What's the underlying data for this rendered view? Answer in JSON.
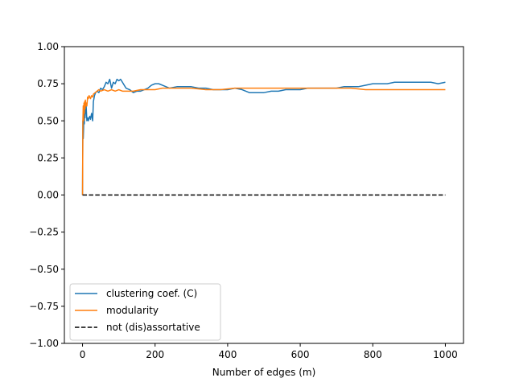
{
  "chart_data": {
    "type": "line",
    "title": "",
    "xlabel": "Number of edges (m)",
    "ylabel": "",
    "xlim": [
      -50,
      1050
    ],
    "ylim": [
      -1.0,
      1.0
    ],
    "xticks": [
      0,
      200,
      400,
      600,
      800,
      1000
    ],
    "xtick_labels": [
      "0",
      "200",
      "400",
      "600",
      "800",
      "1000"
    ],
    "yticks": [
      -1.0,
      -0.75,
      -0.5,
      -0.25,
      0.0,
      0.25,
      0.5,
      0.75,
      1.0
    ],
    "ytick_labels": [
      "−1.00",
      "−0.75",
      "−0.50",
      "−0.25",
      "0.00",
      "0.25",
      "0.50",
      "0.75",
      "1.00"
    ],
    "grid": false,
    "legend_position": "lower-left",
    "series": [
      {
        "name": "clustering coef. (C)",
        "color": "#1f77b4",
        "style": "solid",
        "x": [
          0,
          1,
          2,
          3,
          4,
          5,
          6,
          7,
          8,
          9,
          10,
          12,
          14,
          16,
          18,
          20,
          22,
          25,
          28,
          30,
          33,
          36,
          40,
          45,
          50,
          55,
          60,
          65,
          70,
          75,
          80,
          85,
          90,
          95,
          100,
          105,
          110,
          115,
          120,
          130,
          140,
          150,
          160,
          170,
          180,
          190,
          200,
          210,
          220,
          230,
          240,
          260,
          280,
          300,
          320,
          340,
          360,
          380,
          400,
          420,
          440,
          460,
          480,
          500,
          520,
          540,
          560,
          580,
          600,
          620,
          640,
          660,
          680,
          700,
          720,
          740,
          760,
          780,
          800,
          820,
          840,
          860,
          880,
          900,
          920,
          940,
          960,
          980,
          1000
        ],
        "y": [
          0.0,
          0.5,
          0.38,
          0.45,
          0.55,
          0.48,
          0.62,
          0.52,
          0.58,
          0.55,
          0.6,
          0.5,
          0.52,
          0.5,
          0.52,
          0.53,
          0.51,
          0.55,
          0.5,
          0.63,
          0.67,
          0.69,
          0.7,
          0.69,
          0.72,
          0.71,
          0.73,
          0.76,
          0.75,
          0.78,
          0.72,
          0.76,
          0.75,
          0.78,
          0.77,
          0.78,
          0.76,
          0.74,
          0.72,
          0.71,
          0.69,
          0.7,
          0.7,
          0.71,
          0.72,
          0.74,
          0.75,
          0.75,
          0.74,
          0.73,
          0.72,
          0.73,
          0.73,
          0.73,
          0.72,
          0.72,
          0.71,
          0.71,
          0.71,
          0.72,
          0.71,
          0.69,
          0.69,
          0.69,
          0.7,
          0.7,
          0.71,
          0.71,
          0.71,
          0.72,
          0.72,
          0.72,
          0.72,
          0.72,
          0.73,
          0.73,
          0.73,
          0.74,
          0.75,
          0.75,
          0.75,
          0.76,
          0.76,
          0.76,
          0.76,
          0.76,
          0.76,
          0.75,
          0.76
        ]
      },
      {
        "name": "modularity",
        "color": "#ff7f0e",
        "style": "solid",
        "x": [
          0,
          1,
          2,
          3,
          4,
          5,
          6,
          7,
          8,
          9,
          10,
          12,
          14,
          16,
          18,
          20,
          22,
          25,
          28,
          30,
          35,
          40,
          45,
          50,
          60,
          70,
          80,
          90,
          100,
          110,
          120,
          140,
          160,
          180,
          200,
          220,
          240,
          260,
          280,
          300,
          340,
          380,
          420,
          460,
          500,
          540,
          580,
          620,
          660,
          700,
          740,
          780,
          820,
          860,
          900,
          940,
          980,
          1000
        ],
        "y": [
          0.0,
          0.5,
          0.6,
          0.5,
          0.62,
          0.55,
          0.63,
          0.58,
          0.64,
          0.6,
          0.62,
          0.6,
          0.66,
          0.65,
          0.67,
          0.66,
          0.65,
          0.67,
          0.66,
          0.68,
          0.69,
          0.7,
          0.71,
          0.7,
          0.71,
          0.7,
          0.71,
          0.7,
          0.71,
          0.7,
          0.7,
          0.7,
          0.71,
          0.71,
          0.71,
          0.72,
          0.72,
          0.72,
          0.72,
          0.72,
          0.71,
          0.71,
          0.72,
          0.72,
          0.72,
          0.72,
          0.72,
          0.72,
          0.72,
          0.72,
          0.72,
          0.71,
          0.71,
          0.71,
          0.71,
          0.71,
          0.71,
          0.71
        ]
      },
      {
        "name": "not (dis)assortative",
        "color": "#000000",
        "style": "dashed",
        "x": [
          0,
          1000
        ],
        "y": [
          0.0,
          0.0
        ]
      }
    ]
  }
}
